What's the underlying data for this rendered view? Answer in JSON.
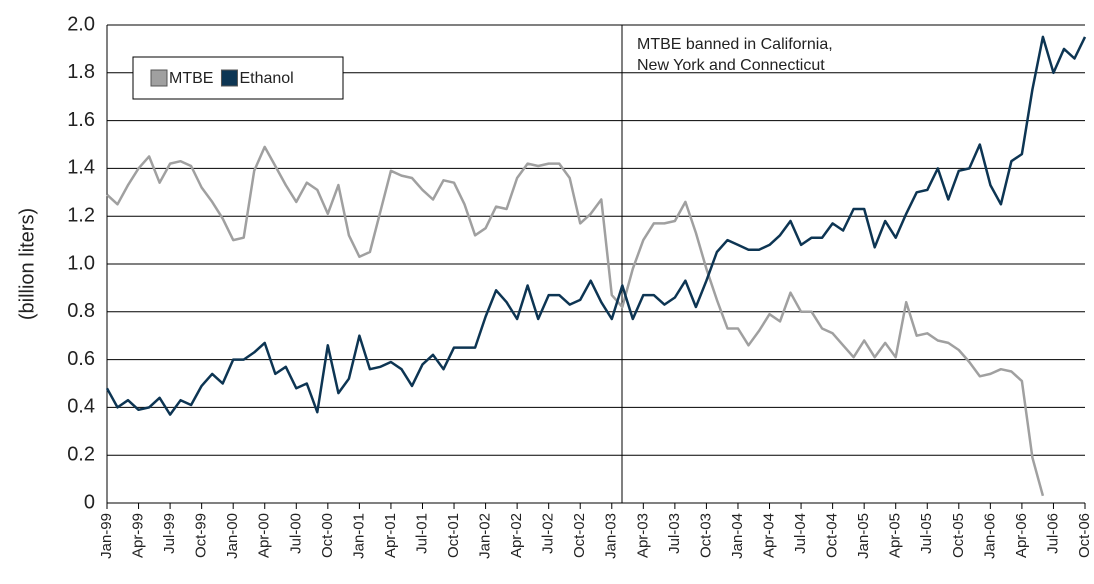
{
  "chart_data": {
    "type": "line",
    "y_label": "(billion liters)",
    "annotation": [
      "MTBE banned in California,",
      "New York and Connecticut"
    ],
    "categories": [
      "Jan-99",
      null,
      null,
      "Apr-99",
      null,
      null,
      "Jul-99",
      null,
      null,
      "Oct-99",
      null,
      null,
      "Jan-00",
      null,
      null,
      "Apr-00",
      null,
      null,
      "Jul-00",
      null,
      null,
      "Oct-00",
      null,
      null,
      "Jan-01",
      null,
      null,
      "Apr-01",
      null,
      null,
      "Jul-01",
      null,
      null,
      "Oct-01",
      null,
      null,
      "Jan-02",
      null,
      null,
      "Apr-02",
      null,
      null,
      "Jul-02",
      null,
      null,
      "Oct-02",
      null,
      null,
      "Jan-03",
      null,
      null,
      "Apr-03",
      null,
      null,
      "Jul-03",
      null,
      null,
      "Oct-03",
      null,
      null,
      "Jan-04",
      null,
      null,
      "Apr-04",
      null,
      null,
      "Jul-04",
      null,
      null,
      "Oct-04",
      null,
      null,
      "Jan-05",
      null,
      null,
      "Apr-05",
      null,
      null,
      "Jul-05",
      null,
      null,
      "Oct-05",
      null,
      null,
      "Jan-06",
      null,
      null,
      "Apr-06",
      null,
      null,
      "Jul-06",
      null,
      null,
      "Oct-06"
    ],
    "series": [
      {
        "name": "MTBE",
        "color": "#a0a0a0",
        "values": [
          1.29,
          1.25,
          1.33,
          1.4,
          1.45,
          1.34,
          1.42,
          1.43,
          1.41,
          1.32,
          1.26,
          1.19,
          1.1,
          1.11,
          1.39,
          1.49,
          1.41,
          1.33,
          1.26,
          1.34,
          1.31,
          1.21,
          1.33,
          1.12,
          1.03,
          1.05,
          1.22,
          1.39,
          1.37,
          1.36,
          1.31,
          1.27,
          1.35,
          1.34,
          1.25,
          1.12,
          1.15,
          1.24,
          1.23,
          1.36,
          1.42,
          1.41,
          1.42,
          1.42,
          1.36,
          1.17,
          1.21,
          1.27,
          0.87,
          0.82,
          0.98,
          1.1,
          1.17,
          1.17,
          1.18,
          1.26,
          1.13,
          0.98,
          0.85,
          0.73,
          0.73,
          0.66,
          0.72,
          0.79,
          0.76,
          0.88,
          0.8,
          0.8,
          0.73,
          0.71,
          0.66,
          0.61,
          0.68,
          0.61,
          0.67,
          0.61,
          0.84,
          0.7,
          0.71,
          0.68,
          0.67,
          0.64,
          0.59,
          0.53,
          0.54,
          0.56,
          0.55,
          0.51,
          0.19,
          0.03,
          null,
          null,
          null,
          null
        ]
      },
      {
        "name": "Ethanol",
        "color": "#0d3553",
        "values": [
          0.48,
          0.4,
          0.43,
          0.39,
          0.4,
          0.44,
          0.37,
          0.43,
          0.41,
          0.49,
          0.54,
          0.5,
          0.6,
          0.6,
          0.63,
          0.67,
          0.54,
          0.57,
          0.48,
          0.5,
          0.38,
          0.66,
          0.46,
          0.52,
          0.7,
          0.56,
          0.57,
          0.59,
          0.56,
          0.49,
          0.58,
          0.62,
          0.56,
          0.65,
          0.65,
          0.65,
          0.78,
          0.89,
          0.84,
          0.77,
          0.91,
          0.77,
          0.87,
          0.87,
          0.83,
          0.85,
          0.93,
          0.84,
          0.77,
          0.91,
          0.77,
          0.87,
          0.87,
          0.83,
          0.86,
          0.93,
          0.82,
          0.93,
          1.05,
          1.1,
          1.08,
          1.06,
          1.06,
          1.08,
          1.12,
          1.18,
          1.08,
          1.11,
          1.11,
          1.17,
          1.14,
          1.23,
          1.23,
          1.07,
          1.18,
          1.11,
          1.21,
          1.3,
          1.31,
          1.4,
          1.27,
          1.39,
          1.4,
          1.5,
          1.33,
          1.25,
          1.43,
          1.46,
          1.73,
          1.95,
          1.8,
          1.9,
          1.86,
          1.95
        ]
      }
    ],
    "ylim": [
      0,
      2.0
    ],
    "yticks": [
      0,
      0.2,
      0.4,
      0.6,
      0.8,
      {
        "value": 1.0,
        "label": "1.0"
      },
      1.2,
      1.4,
      1.6,
      1.8,
      {
        "value": 2.0,
        "label": "2.0"
      }
    ],
    "grid": true,
    "legend": "upper left"
  }
}
